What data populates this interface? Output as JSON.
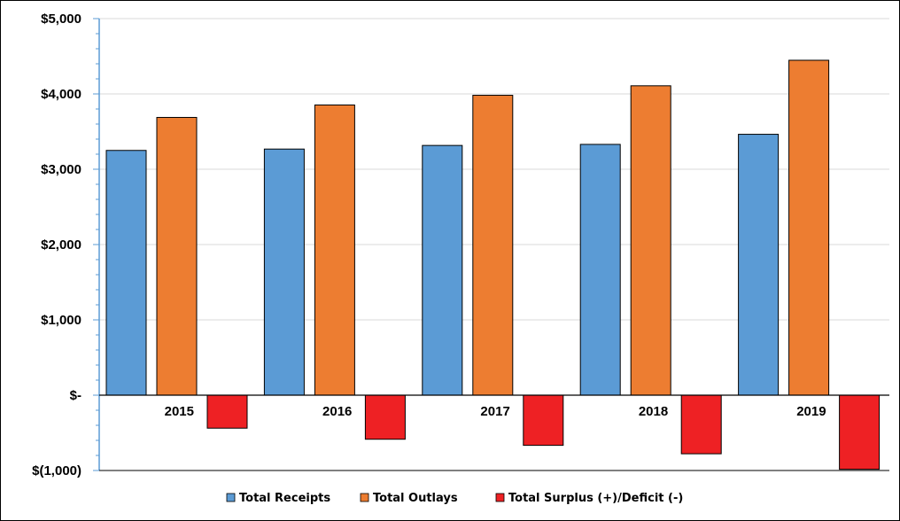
{
  "chart_data": {
    "type": "bar",
    "categories": [
      "2015",
      "2016",
      "2017",
      "2018",
      "2019"
    ],
    "series": [
      {
        "name": "Total Receipts",
        "color": "#5b9bd5",
        "values": [
          3250,
          3268,
          3316,
          3330,
          3464
        ]
      },
      {
        "name": "Total Outlays",
        "color": "#ed7d31",
        "values": [
          3688,
          3853,
          3982,
          4108,
          4447
        ]
      },
      {
        "name": "Total Surplus (+)/Deficit (-)",
        "color": "#ee2124",
        "values": [
          -438,
          -585,
          -666,
          -778,
          -984
        ]
      }
    ],
    "ylim": [
      -1000,
      5000
    ],
    "yticks": [
      5000,
      4000,
      3000,
      2000,
      1000,
      0,
      -1000
    ],
    "ytick_labels": [
      "$5,000",
      "$4,000",
      "$3,000",
      "$2,000",
      "$1,000",
      "$-",
      "$(1,000)"
    ],
    "grid": true,
    "legend": "bottom",
    "title": "",
    "xlabel": "",
    "ylabel": ""
  }
}
